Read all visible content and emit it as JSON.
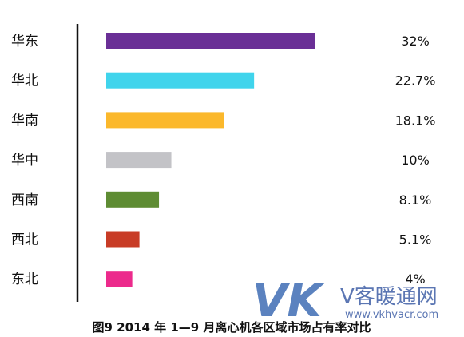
{
  "chart_data": {
    "type": "bar",
    "orientation": "horizontal",
    "categories": [
      "华东",
      "华北",
      "华南",
      "华中",
      "西南",
      "西北",
      "东北"
    ],
    "values": [
      32,
      22.7,
      18.1,
      10,
      8.1,
      5.1,
      4
    ],
    "value_labels": [
      "32%",
      "22.7%",
      "18.1%",
      "10%",
      "8.1%",
      "5.1%",
      "4%"
    ],
    "colors": [
      "#6a2f96",
      "#40d4ec",
      "#fbb82c",
      "#c3c3c7",
      "#5e8c33",
      "#c83c26",
      "#ec2a8c"
    ],
    "xlim": [
      0,
      32
    ],
    "grid": false,
    "title": "图9  2014 年 1—9 月离心机各区域市场占有率对比"
  },
  "watermark": {
    "logo_text": "VK",
    "brand_name": "V客暖通网",
    "url": "www.vkhvacr.com"
  }
}
